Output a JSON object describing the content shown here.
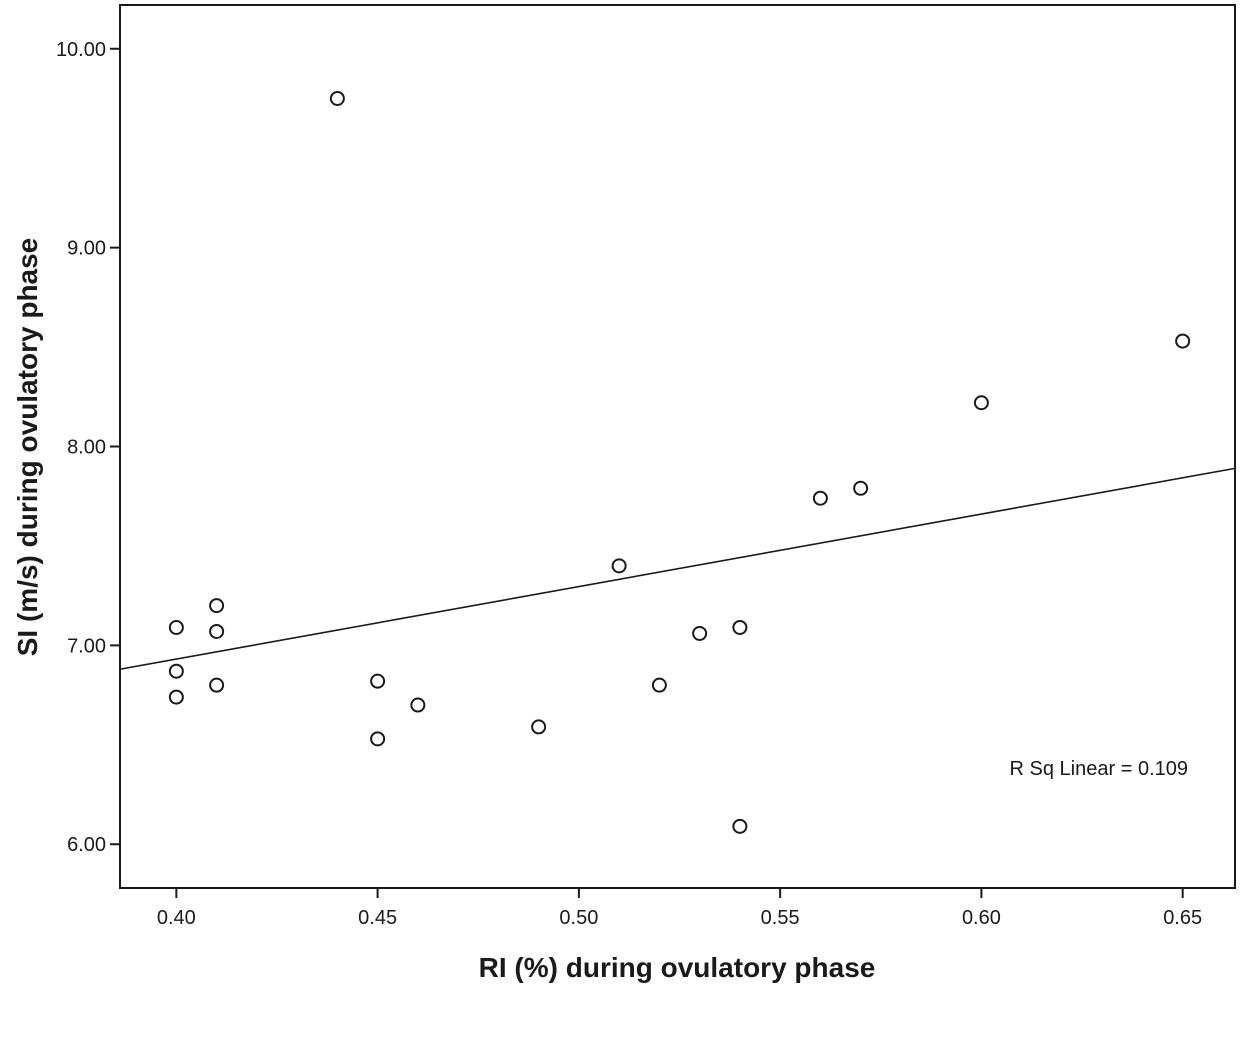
{
  "chart_data": {
    "type": "scatter",
    "title": "",
    "xlabel": "RI (%) during ovulatory phase",
    "ylabel": "SI (m/s) during ovulatory phase",
    "xlim": [
      0.386,
      0.663
    ],
    "ylim": [
      5.78,
      10.22
    ],
    "x_ticks": [
      0.4,
      0.45,
      0.5,
      0.55,
      0.6,
      0.65
    ],
    "x_tick_labels": [
      "0.40",
      "0.45",
      "0.50",
      "0.55",
      "0.60",
      "0.65"
    ],
    "y_ticks": [
      6,
      7,
      8,
      9,
      10
    ],
    "y_tick_labels": [
      "6.00",
      "7.00",
      "8.00",
      "9.00",
      "10.00"
    ],
    "grid": false,
    "legend": "none",
    "points": [
      {
        "x": 0.4,
        "y": 7.09
      },
      {
        "x": 0.4,
        "y": 6.87
      },
      {
        "x": 0.4,
        "y": 6.74
      },
      {
        "x": 0.41,
        "y": 7.2
      },
      {
        "x": 0.41,
        "y": 7.07
      },
      {
        "x": 0.41,
        "y": 6.8
      },
      {
        "x": 0.44,
        "y": 9.75
      },
      {
        "x": 0.45,
        "y": 6.82
      },
      {
        "x": 0.45,
        "y": 6.53
      },
      {
        "x": 0.46,
        "y": 6.7
      },
      {
        "x": 0.49,
        "y": 6.59
      },
      {
        "x": 0.51,
        "y": 7.4
      },
      {
        "x": 0.52,
        "y": 6.8
      },
      {
        "x": 0.53,
        "y": 7.06
      },
      {
        "x": 0.54,
        "y": 7.09
      },
      {
        "x": 0.54,
        "y": 6.09
      },
      {
        "x": 0.56,
        "y": 7.74
      },
      {
        "x": 0.57,
        "y": 7.79
      },
      {
        "x": 0.6,
        "y": 8.22
      },
      {
        "x": 0.65,
        "y": 8.53
      }
    ],
    "fit_line": {
      "type": "linear",
      "x": [
        0.386,
        0.663
      ],
      "y": [
        6.88,
        7.89
      ]
    },
    "annotations": [
      {
        "text": "R Sq Linear = 0.109"
      }
    ],
    "colors": {
      "marker_stroke": "#1a1a1a",
      "marker_fill": "#ffffff",
      "line": "#1a1a1a",
      "axis": "#1a1a1a"
    }
  }
}
